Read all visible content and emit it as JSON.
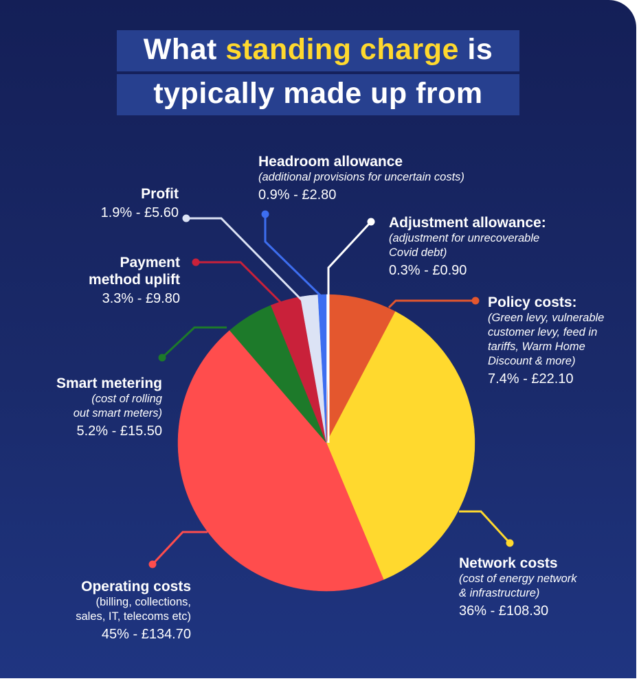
{
  "title": {
    "line1_pre": "What ",
    "line1_highlight": "standing charge",
    "line1_post": " is",
    "line2": "typically made up from"
  },
  "colors": {
    "background": "#1a2a6a",
    "title_box": "#27408f",
    "highlight": "#ffd92e"
  },
  "chart_data": {
    "type": "pie",
    "title": "What standing charge is typically made up from",
    "unit": "£",
    "slices": [
      {
        "name": "Adjustment allowance:",
        "description": "(adjustment for unrecoverable Covid debt)",
        "percent": 0.3,
        "value": 0.9,
        "label": "0.3% - £0.90",
        "color": "#ffffff"
      },
      {
        "name": "Policy costs:",
        "description": "(Green levy, vulnerable customer levy, feed in tariffs, Warm Home Discount & more)",
        "percent": 7.4,
        "value": 22.1,
        "label": "7.4% - £22.10",
        "color": "#e4572e"
      },
      {
        "name": "Network costs",
        "description": "(cost of energy network & infrastructure)",
        "percent": 36,
        "value": 108.3,
        "label": "36% - £108.30",
        "color": "#ffd92e"
      },
      {
        "name": "Operating costs",
        "description": "(billing, collections, sales, IT, telecoms etc)",
        "percent": 45,
        "value": 134.7,
        "label": "45% - £134.70",
        "color": "#ff4d4d"
      },
      {
        "name": "Smart metering",
        "description": "(cost of rolling out smart meters)",
        "percent": 5.2,
        "value": 15.5,
        "label": "5.2% - £15.50",
        "color": "#1d7a2a"
      },
      {
        "name": "Payment method uplift",
        "description": "",
        "percent": 3.3,
        "value": 9.8,
        "label": "3.3% - £9.80",
        "color": "#c9213a"
      },
      {
        "name": "Profit",
        "description": "",
        "percent": 1.9,
        "value": 5.6,
        "label": "1.9% - £5.60",
        "color": "#dce3f5"
      },
      {
        "name": "Headroom allowance",
        "description": "(additional provisions for uncertain costs)",
        "percent": 0.9,
        "value": 2.8,
        "label": "0.9% - £2.80",
        "color": "#3d6ef0"
      }
    ]
  },
  "labels": {
    "headroom": {
      "name": "Headroom allowance",
      "desc": "(additional provisions for uncertain costs)",
      "val": "0.9% - £2.80"
    },
    "profit": {
      "name": "Profit",
      "val": "1.9% - £5.60"
    },
    "adjustment": {
      "name": "Adjustment allowance:",
      "desc1": "(adjustment for unrecoverable",
      "desc2": "Covid debt)",
      "val": "0.3% - £0.90"
    },
    "payment": {
      "name1": "Payment",
      "name2": "method uplift",
      "val": "3.3% - £9.80"
    },
    "policy": {
      "name": "Policy costs:",
      "desc1": "(Green levy, vulnerable",
      "desc2": "customer levy, feed in",
      "desc3": "tariffs, Warm Home",
      "desc4": "Discount & more)",
      "val": "7.4% - £22.10"
    },
    "smart": {
      "name": "Smart metering",
      "desc1": "(cost of rolling",
      "desc2": "out smart meters)",
      "val": "5.2% - £15.50"
    },
    "network": {
      "name": "Network costs",
      "desc1": "(cost of energy network",
      "desc2": "& infrastructure)",
      "val": "36% - £108.30"
    },
    "operating": {
      "name": "Operating costs",
      "desc1": "(billing, collections,",
      "desc2": "sales, IT, telecoms etc)",
      "val": "45% - £134.70"
    }
  }
}
